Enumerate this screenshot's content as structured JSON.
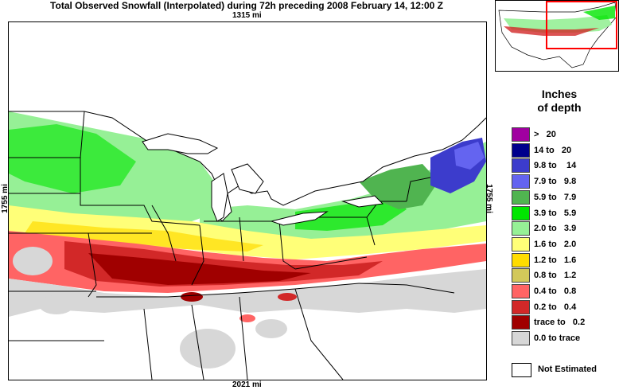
{
  "title": "Total Observed Snowfall (Interpolated) during 72h preceding 2008 February 14, 12:00 Z",
  "distances": {
    "top": "1315 mi",
    "bottom": "2021 mi",
    "left": "1755 mi",
    "right": "1755 mi"
  },
  "legend": {
    "title_line1": "Inches",
    "title_line2": "of depth",
    "items": [
      {
        "label": ">   20",
        "color": "#a000a0"
      },
      {
        "label": "14 to   20",
        "color": "#00008c"
      },
      {
        "label": "9.8 to    14",
        "color": "#3c3ccc"
      },
      {
        "label": "7.9 to   9.8",
        "color": "#6464f0"
      },
      {
        "label": "5.9 to   7.9",
        "color": "#50b450"
      },
      {
        "label": "3.9 to   5.9",
        "color": "#00e600"
      },
      {
        "label": "2.0 to   3.9",
        "color": "#96f096"
      },
      {
        "label": "1.6 to   2.0",
        "color": "#ffff78"
      },
      {
        "label": "1.2 to   1.6",
        "color": "#ffdc00"
      },
      {
        "label": "0.8 to   1.2",
        "color": "#d2c85a"
      },
      {
        "label": "0.4 to   0.8",
        "color": "#ff6464"
      },
      {
        "label": "0.2 to   0.4",
        "color": "#d22828"
      },
      {
        "label": "trace to   0.2",
        "color": "#a00000"
      },
      {
        "label": "0.0 to trace",
        "color": "#d7d7d7"
      }
    ],
    "not_estimated": "Not Estimated"
  },
  "inset": {
    "highlight_color": "#ff0000"
  }
}
